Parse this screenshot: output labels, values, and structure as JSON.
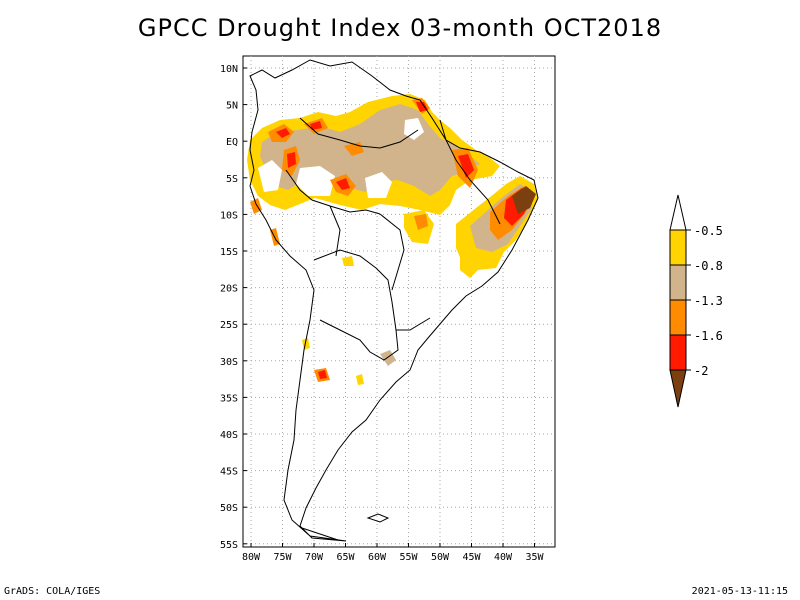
{
  "title": "GPCC Drought Index 03-month OCT2018",
  "credit_left": "GrADS: COLA/IGES",
  "credit_right": "2021-05-13-11:15",
  "map": {
    "lat_ticks": [
      "10N",
      "5N",
      "EQ",
      "5S",
      "10S",
      "15S",
      "20S",
      "25S",
      "30S",
      "35S",
      "40S",
      "45S",
      "50S",
      "55S"
    ],
    "lon_ticks": [
      "80W",
      "75W",
      "70W",
      "65W",
      "60W",
      "55W",
      "50W",
      "45W",
      "40W",
      "35W"
    ]
  },
  "legend": {
    "labels": [
      "-0.5",
      "-0.8",
      "-1.3",
      "-1.6",
      "-2"
    ],
    "colors": {
      "white": "#ffffff",
      "yellow": "#ffd400",
      "tan": "#d2b48c",
      "orange": "#ff8c00",
      "red": "#ff1a00",
      "brown": "#7b3f10"
    }
  }
}
